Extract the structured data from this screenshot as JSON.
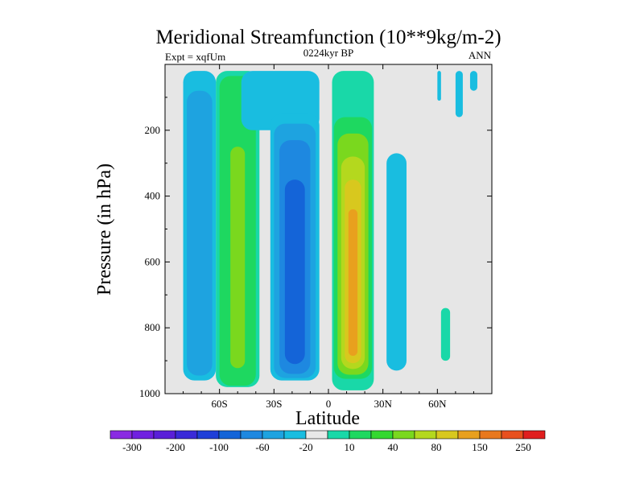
{
  "chart_data": {
    "type": "contour",
    "title": "Meridional Streamfunction (10**9kg/m-2)",
    "subtitle": "0224kyr BP",
    "left_label": "Expt = xqfUm",
    "right_label": "ANN",
    "xlabel": "Latitude",
    "ylabel": "Pressure (in hPa)",
    "xlim": [
      -90,
      90
    ],
    "ylim": [
      1000,
      0
    ],
    "x_ticks": [
      -60,
      -30,
      0,
      30,
      60
    ],
    "x_tick_labels": [
      "60S",
      "30S",
      "0",
      "30N",
      "60N"
    ],
    "y_ticks": [
      200,
      400,
      600,
      800,
      1000
    ],
    "y_tick_labels": [
      "200",
      "400",
      "600",
      "800",
      "1000"
    ],
    "background_color": "#e6e6e6",
    "colorbar": {
      "levels": [
        -300,
        -250,
        -200,
        -150,
        -100,
        -80,
        -60,
        -40,
        -20,
        -10,
        10,
        20,
        40,
        60,
        80,
        100,
        150,
        200,
        250,
        300
      ],
      "labels": [
        "-300",
        "-200",
        "-100",
        "-60",
        "-20",
        "10",
        "40",
        "80",
        "150",
        "250"
      ],
      "colors": [
        "#8a2be2",
        "#7020e0",
        "#5a1fd8",
        "#3a2ad8",
        "#1f3fd8",
        "#1464d8",
        "#1e88e0",
        "#1ea3e0",
        "#19bde0",
        "#e8e8e8",
        "#19d8a8",
        "#1ed860",
        "#34d830",
        "#7ad81e",
        "#b4d81e",
        "#d8c81e",
        "#e8a01e",
        "#e8781e",
        "#e8501e",
        "#e01e1e"
      ]
    },
    "cells": [
      {
        "name": "southern-polar-negative-cell",
        "lat": [
          -80,
          -62
        ],
        "p": [
          20,
          960
        ],
        "levels": [
          {
            "lat_inset": 0,
            "p_inset": 0,
            "value": -10,
            "color": "#19bde0"
          },
          {
            "lat_inset": 2,
            "p_inset": 60,
            "value": -20,
            "color": "#1ea3e0"
          }
        ]
      },
      {
        "name": "southern-midlatitude-positive-cell",
        "lat": [
          -62,
          -38
        ],
        "p": [
          20,
          980
        ],
        "levels": [
          {
            "lat_inset": 0,
            "p_inset": 0,
            "value": 10,
            "color": "#19d8a8"
          },
          {
            "lat_inset": 2,
            "p_inset": 15,
            "value": 20,
            "color": "#1ed860"
          },
          {
            "lat_inset": 8,
            "p_inset": 230,
            "value": 40,
            "color": "#7ad81e"
          }
        ]
      },
      {
        "name": "southern-upper-branch-negative",
        "lat": [
          -48,
          -5
        ],
        "p": [
          20,
          200
        ],
        "levels": [
          {
            "lat_inset": 0,
            "p_inset": 0,
            "value": -10,
            "color": "#19bde0"
          }
        ]
      },
      {
        "name": "southern-hadley-negative-cell",
        "lat": [
          -32,
          -5
        ],
        "p": [
          150,
          960
        ],
        "levels": [
          {
            "lat_inset": 0,
            "p_inset": 0,
            "value": -10,
            "color": "#19bde0"
          },
          {
            "lat_inset": 2,
            "p_inset": 30,
            "value": -20,
            "color": "#1ea3e0"
          },
          {
            "lat_inset": 5,
            "p_inset": 80,
            "value": -40,
            "color": "#1e88e0"
          },
          {
            "lat_inset": 8,
            "p_inset": 200,
            "value": -60,
            "color": "#1464d8"
          }
        ]
      },
      {
        "name": "northern-hadley-positive-cell",
        "lat": [
          2,
          25
        ],
        "p": [
          20,
          990
        ],
        "levels": [
          {
            "lat_inset": 0,
            "p_inset": 0,
            "value": 10,
            "color": "#19d8a8"
          },
          {
            "lat_inset": 1,
            "p_inset": 140,
            "value": 20,
            "color": "#1ed860"
          },
          {
            "lat_inset": 3,
            "p_inset": 190,
            "value": 40,
            "color": "#7ad81e"
          },
          {
            "lat_inset": 5,
            "p_inset": 260,
            "value": 60,
            "color": "#b4d81e"
          },
          {
            "lat_inset": 7,
            "p_inset": 330,
            "value": 80,
            "color": "#d8c81e"
          },
          {
            "lat_inset": 9,
            "p_inset": 420,
            "value": 100,
            "color": "#e8a01e"
          }
        ]
      },
      {
        "name": "northern-midlatitude-negative-cell",
        "lat": [
          32,
          43
        ],
        "p": [
          270,
          930
        ],
        "levels": [
          {
            "lat_inset": 0,
            "p_inset": 0,
            "value": -10,
            "color": "#19bde0"
          }
        ]
      },
      {
        "name": "northern-high-latitude-positive-cell",
        "lat": [
          62,
          67
        ],
        "p": [
          740,
          900
        ],
        "levels": [
          {
            "lat_inset": 0,
            "p_inset": 0,
            "value": 10,
            "color": "#19d8a8"
          }
        ]
      },
      {
        "name": "northern-upper-negative-patch-1",
        "lat": [
          60,
          62
        ],
        "p": [
          20,
          110
        ],
        "levels": [
          {
            "lat_inset": 0,
            "p_inset": 0,
            "value": -10,
            "color": "#19bde0"
          }
        ]
      },
      {
        "name": "northern-upper-negative-patch-2",
        "lat": [
          70,
          74
        ],
        "p": [
          20,
          160
        ],
        "levels": [
          {
            "lat_inset": 0,
            "p_inset": 0,
            "value": -10,
            "color": "#19bde0"
          }
        ]
      },
      {
        "name": "northern-upper-negative-patch-3",
        "lat": [
          78,
          82
        ],
        "p": [
          20,
          80
        ],
        "levels": [
          {
            "lat_inset": 0,
            "p_inset": 0,
            "value": -10,
            "color": "#19bde0"
          }
        ]
      }
    ]
  }
}
